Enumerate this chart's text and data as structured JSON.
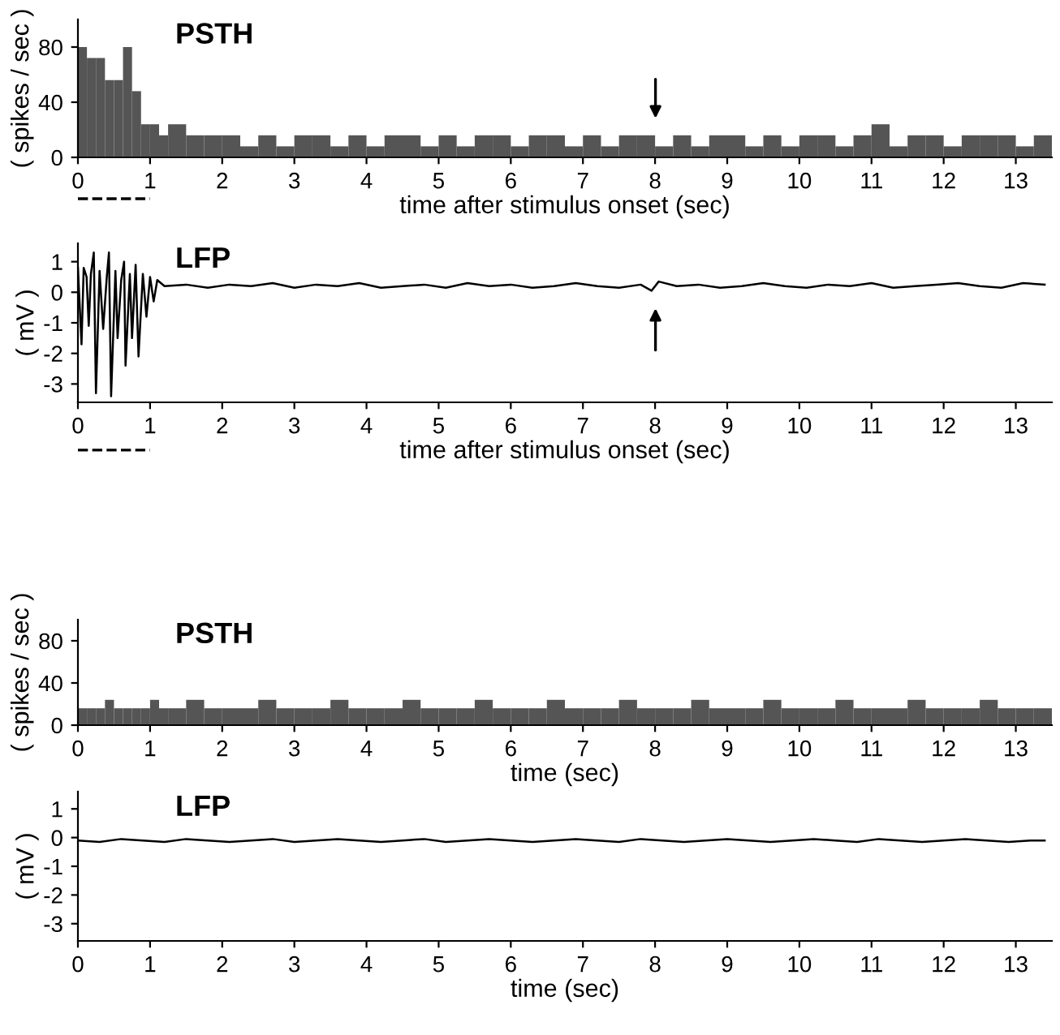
{
  "chart_data": [
    {
      "type": "histogram",
      "title": "PSTH",
      "xlabel": "time after stimulus onset (sec)",
      "ylabel": "( spikes / sec )",
      "color": "#555555",
      "bins": [
        0,
        0.125,
        0.25,
        0.375,
        0.5,
        0.625,
        0.75,
        0.875,
        1,
        1.125,
        1.25,
        1.5,
        1.75,
        2,
        2.25,
        2.5,
        2.75,
        3,
        3.25,
        3.5,
        3.75,
        4,
        4.25,
        4.5,
        4.75,
        5,
        5.25,
        5.5,
        5.75,
        6,
        6.25,
        6.5,
        6.75,
        7,
        7.25,
        7.5,
        7.75,
        8,
        8.25,
        8.5,
        8.75,
        9,
        9.25,
        9.5,
        9.75,
        10,
        10.25,
        10.5,
        10.75,
        11,
        11.25,
        11.5,
        11.75,
        12,
        12.25,
        12.5,
        12.75,
        13,
        13.25,
        13.5
      ],
      "values": [
        80,
        72,
        72,
        56,
        56,
        80,
        48,
        24,
        24,
        16,
        24,
        16,
        16,
        16,
        8,
        16,
        8,
        16,
        16,
        8,
        16,
        8,
        16,
        16,
        8,
        16,
        8,
        16,
        16,
        8,
        16,
        16,
        8,
        16,
        8,
        16,
        16,
        8,
        16,
        8,
        16,
        16,
        8,
        16,
        8,
        16,
        16,
        8,
        16,
        24,
        8,
        16,
        16,
        8,
        16,
        16,
        16,
        8,
        16
      ],
      "xlim": [
        0,
        13.5
      ],
      "xticks": [
        0,
        1,
        2,
        3,
        4,
        5,
        6,
        7,
        8,
        9,
        10,
        11,
        12,
        13
      ],
      "ylim": [
        0,
        100
      ],
      "yticks": [
        0,
        40,
        80
      ],
      "grid": false
    },
    {
      "type": "line",
      "title": "LFP",
      "xlabel": "time after stimulus onset (sec)",
      "ylabel": "( mV )",
      "color": "#000000",
      "x": [
        0,
        0.05,
        0.08,
        0.12,
        0.15,
        0.18,
        0.22,
        0.25,
        0.3,
        0.35,
        0.4,
        0.43,
        0.46,
        0.52,
        0.55,
        0.6,
        0.64,
        0.66,
        0.72,
        0.75,
        0.8,
        0.84,
        0.9,
        0.95,
        1.0,
        1.05,
        1.1,
        1.2,
        1.5,
        1.8,
        2.1,
        2.4,
        2.7,
        3.0,
        3.3,
        3.6,
        3.9,
        4.2,
        4.5,
        4.8,
        5.1,
        5.4,
        5.7,
        6.0,
        6.3,
        6.6,
        6.9,
        7.2,
        7.5,
        7.8,
        7.95,
        8.05,
        8.3,
        8.6,
        8.9,
        9.2,
        9.5,
        9.8,
        10.1,
        10.4,
        10.7,
        11.0,
        11.3,
        11.6,
        11.9,
        12.2,
        12.5,
        12.8,
        13.1,
        13.4
      ],
      "values": [
        0.8,
        -1.7,
        0.8,
        0.5,
        -1.1,
        0.6,
        1.3,
        -3.3,
        0.7,
        -1.2,
        0.5,
        1.3,
        -3.4,
        0.7,
        -1.5,
        0.4,
        1.0,
        -2.4,
        0.6,
        -1.5,
        0.9,
        -2.1,
        0.6,
        -0.8,
        0.5,
        -0.3,
        0.4,
        0.2,
        0.25,
        0.15,
        0.25,
        0.2,
        0.3,
        0.15,
        0.25,
        0.2,
        0.3,
        0.15,
        0.2,
        0.25,
        0.15,
        0.3,
        0.2,
        0.25,
        0.15,
        0.2,
        0.3,
        0.2,
        0.15,
        0.25,
        0.05,
        0.35,
        0.2,
        0.25,
        0.15,
        0.2,
        0.3,
        0.2,
        0.15,
        0.25,
        0.2,
        0.3,
        0.15,
        0.2,
        0.25,
        0.3,
        0.2,
        0.15,
        0.3,
        0.25
      ],
      "xlim": [
        0,
        13.5
      ],
      "xticks": [
        0,
        1,
        2,
        3,
        4,
        5,
        6,
        7,
        8,
        9,
        10,
        11,
        12,
        13
      ],
      "ylim": [
        -3.6,
        1.6
      ],
      "yticks": [
        {
          "value": -3,
          "label": "-3"
        },
        {
          "value": -2,
          "label": "-2"
        },
        {
          "value": -1,
          "label": "-1"
        },
        0,
        1
      ],
      "grid": false
    },
    {
      "type": "histogram",
      "title": "PSTH",
      "xlabel": "time (sec)",
      "ylabel": "( spikes / sec )",
      "color": "#555555",
      "bins": [
        0,
        0.125,
        0.25,
        0.375,
        0.5,
        0.625,
        0.75,
        0.875,
        1,
        1.125,
        1.25,
        1.5,
        1.75,
        2,
        2.25,
        2.5,
        2.75,
        3,
        3.25,
        3.5,
        3.75,
        4,
        4.25,
        4.5,
        4.75,
        5,
        5.25,
        5.5,
        5.75,
        6,
        6.25,
        6.5,
        6.75,
        7,
        7.25,
        7.5,
        7.75,
        8,
        8.25,
        8.5,
        8.75,
        9,
        9.25,
        9.5,
        9.75,
        10,
        10.25,
        10.5,
        10.75,
        11,
        11.25,
        11.5,
        11.75,
        12,
        12.25,
        12.5,
        12.75,
        13,
        13.25,
        13.5
      ],
      "values": [
        16,
        16,
        16,
        24,
        16,
        16,
        16,
        16,
        24,
        16,
        16,
        24,
        16,
        16,
        16,
        24,
        16,
        16,
        16,
        24,
        16,
        16,
        16,
        24,
        16,
        16,
        16,
        24,
        16,
        16,
        16,
        24,
        16,
        16,
        16,
        24,
        16,
        16,
        16,
        24,
        16,
        16,
        16,
        24,
        16,
        16,
        16,
        24,
        16,
        16,
        16,
        24,
        16,
        16,
        16,
        24,
        16,
        16,
        16
      ],
      "xlim": [
        0,
        13.5
      ],
      "xticks": [
        0,
        1,
        2,
        3,
        4,
        5,
        6,
        7,
        8,
        9,
        10,
        11,
        12,
        13
      ],
      "ylim": [
        0,
        100
      ],
      "yticks": [
        0,
        40,
        80
      ],
      "grid": false
    },
    {
      "type": "line",
      "title": "LFP",
      "xlabel": "time (sec)",
      "ylabel": "( mV )",
      "color": "#000000",
      "x": [
        0,
        0.3,
        0.6,
        0.9,
        1.2,
        1.5,
        1.8,
        2.1,
        2.4,
        2.7,
        3.0,
        3.3,
        3.6,
        3.9,
        4.2,
        4.5,
        4.8,
        5.1,
        5.4,
        5.7,
        6.0,
        6.3,
        6.6,
        6.9,
        7.2,
        7.5,
        7.8,
        8.1,
        8.4,
        8.7,
        9.0,
        9.3,
        9.6,
        9.9,
        10.2,
        10.5,
        10.8,
        11.1,
        11.4,
        11.7,
        12.0,
        12.3,
        12.6,
        12.9,
        13.2,
        13.4
      ],
      "values": [
        -0.1,
        -0.15,
        -0.05,
        -0.1,
        -0.15,
        -0.05,
        -0.1,
        -0.15,
        -0.1,
        -0.05,
        -0.15,
        -0.1,
        -0.05,
        -0.1,
        -0.15,
        -0.1,
        -0.05,
        -0.15,
        -0.1,
        -0.05,
        -0.1,
        -0.15,
        -0.1,
        -0.05,
        -0.1,
        -0.15,
        -0.05,
        -0.1,
        -0.15,
        -0.1,
        -0.05,
        -0.1,
        -0.15,
        -0.1,
        -0.05,
        -0.1,
        -0.15,
        -0.05,
        -0.1,
        -0.15,
        -0.1,
        -0.05,
        -0.1,
        -0.15,
        -0.1,
        -0.1
      ],
      "xlim": [
        0,
        13.5
      ],
      "xticks": [
        0,
        1,
        2,
        3,
        4,
        5,
        6,
        7,
        8,
        9,
        10,
        11,
        12,
        13
      ],
      "ylim": [
        -3.6,
        1.6
      ],
      "yticks": [
        {
          "value": -3,
          "label": "-3"
        },
        {
          "value": -2,
          "label": "-2"
        },
        {
          "value": -1,
          "label": "-1"
        },
        0,
        1
      ],
      "grid": false
    }
  ]
}
